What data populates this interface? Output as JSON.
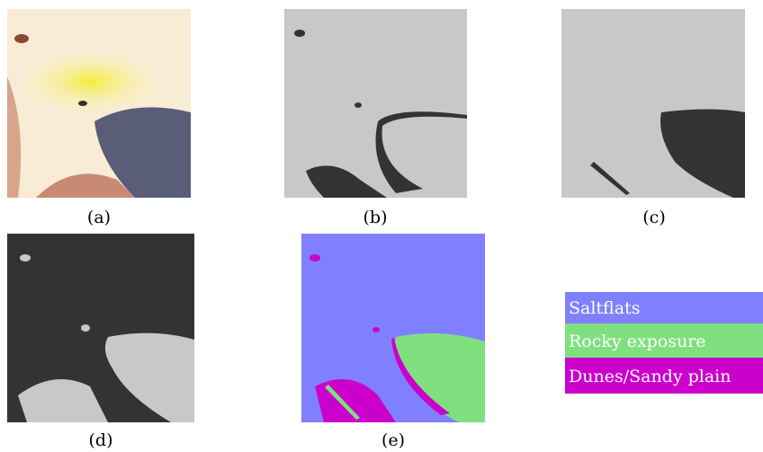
{
  "panels": [
    {
      "caption": "(a)"
    },
    {
      "caption": "(b)"
    },
    {
      "caption": "(c)"
    },
    {
      "caption": "(d)"
    },
    {
      "caption": "(e)"
    }
  ],
  "legend": [
    {
      "label": "Saltflats"
    },
    {
      "label": "Rocky exposure"
    },
    {
      "label": "Dunes/Sandy plain"
    }
  ]
}
